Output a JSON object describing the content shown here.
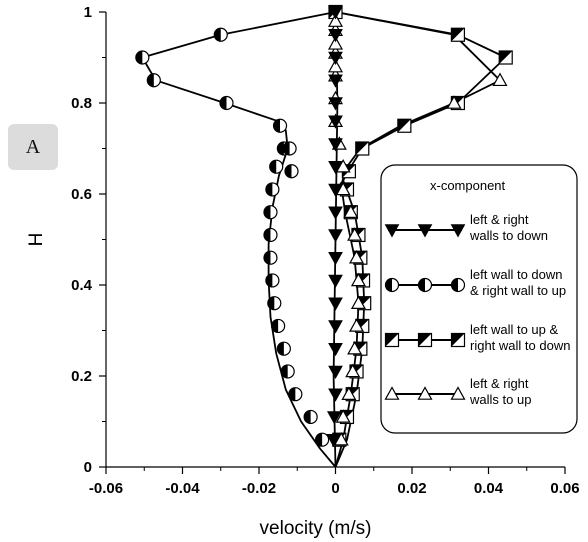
{
  "panel_label": "A",
  "chart_data": {
    "type": "line",
    "xlabel": "velocity (m/s)",
    "ylabel": "H",
    "xlim": [
      -0.06,
      0.06
    ],
    "ylim": [
      0,
      1
    ],
    "x_ticks": [
      "-0.06",
      "-0.04",
      "-0.02",
      "0",
      "0.02",
      "0.04",
      "0.06"
    ],
    "y_ticks": [
      "0",
      "0.2",
      "0.4",
      "0.6",
      "0.8",
      "1"
    ],
    "grid": false,
    "legend": {
      "title": "x-component",
      "placement": "right"
    },
    "series": [
      {
        "name": "left & right walls to down",
        "marker": "triangle-down-filled",
        "line_x": [
          0,
          -0.0005,
          0,
          0.0005,
          0
        ],
        "line_y": [
          0,
          0.2,
          0.5,
          0.8,
          1
        ],
        "x": [
          -0.0005,
          -0.0003,
          0,
          0,
          0,
          0,
          0,
          0,
          0,
          0,
          0,
          0,
          0,
          0,
          0,
          0,
          0,
          0,
          0,
          0
        ],
        "y": [
          0.06,
          0.11,
          0.16,
          0.21,
          0.26,
          0.31,
          0.36,
          0.41,
          0.46,
          0.51,
          0.56,
          0.61,
          0.66,
          0.71,
          0.76,
          0.8,
          0.85,
          0.9,
          0.95,
          1.0
        ]
      },
      {
        "name": "left wall to down & right wall to up",
        "marker": "circle-half",
        "line_x": [
          0,
          -0.004,
          -0.009,
          -0.013,
          -0.0155,
          -0.017,
          -0.0175,
          -0.0175,
          -0.0165,
          -0.0148,
          -0.0125,
          -0.013,
          -0.015,
          -0.029,
          -0.047,
          -0.0505,
          -0.03,
          0
        ],
        "line_y": [
          0,
          0.04,
          0.1,
          0.17,
          0.25,
          0.33,
          0.41,
          0.49,
          0.57,
          0.64,
          0.7,
          0.74,
          0.76,
          0.8,
          0.85,
          0.9,
          0.95,
          1.0
        ],
        "x": [
          -0.0035,
          -0.0065,
          -0.0105,
          -0.0125,
          -0.0135,
          -0.015,
          -0.016,
          -0.0165,
          -0.017,
          -0.017,
          -0.017,
          -0.0165,
          -0.0155,
          -0.0135,
          -0.012,
          -0.0115,
          -0.0145,
          -0.0285,
          -0.0475,
          -0.0505,
          -0.03
        ],
        "y": [
          0.06,
          0.11,
          0.16,
          0.21,
          0.26,
          0.31,
          0.36,
          0.41,
          0.46,
          0.51,
          0.56,
          0.61,
          0.66,
          0.7,
          0.7,
          0.65,
          0.75,
          0.8,
          0.85,
          0.9,
          0.95
        ]
      },
      {
        "name": "left wall to up & right wall to down",
        "marker": "square-half",
        "line_x": [
          0,
          0.003,
          0.0055,
          0.007,
          0.0075,
          0.007,
          0.005,
          0.002,
          0.004,
          0.007,
          0.018,
          0.032,
          0.0445,
          0.032,
          0
        ],
        "line_y": [
          0,
          0.06,
          0.16,
          0.26,
          0.36,
          0.46,
          0.56,
          0.63,
          0.66,
          0.7,
          0.75,
          0.8,
          0.9,
          0.95,
          1.0
        ],
        "x": [
          0.001,
          0.003,
          0.0045,
          0.0055,
          0.0065,
          0.007,
          0.0075,
          0.0072,
          0.0065,
          0.006,
          0.004,
          0.003,
          0.0035,
          0.007,
          0.018,
          0.032,
          0.0445,
          0.032,
          0.0
        ],
        "y": [
          0.06,
          0.11,
          0.16,
          0.21,
          0.26,
          0.31,
          0.36,
          0.41,
          0.46,
          0.51,
          0.56,
          0.61,
          0.65,
          0.7,
          0.75,
          0.8,
          0.9,
          0.95,
          1.0
        ]
      },
      {
        "name": "left & right walls to up",
        "marker": "triangle-up-open",
        "line_x": [
          0,
          0.002,
          0.004,
          0.0055,
          0.006,
          0.005,
          0.0025,
          0.0015,
          0.003,
          0.0065,
          0.017,
          0.031,
          0.043,
          0.031,
          0
        ],
        "line_y": [
          0,
          0.06,
          0.16,
          0.26,
          0.36,
          0.46,
          0.56,
          0.62,
          0.66,
          0.7,
          0.75,
          0.8,
          0.85,
          0.95,
          1.0
        ],
        "x": [
          0.0015,
          0.002,
          0.0035,
          0.0045,
          0.005,
          0.0055,
          0.006,
          0.006,
          0.0055,
          0.005,
          0.004,
          0.002,
          0.002,
          0.001,
          0.0,
          0.0,
          0.0,
          0.0,
          0.0,
          0.0,
          0.0,
          0.0,
          0.031,
          0.043
        ],
        "y": [
          0.06,
          0.11,
          0.16,
          0.21,
          0.26,
          0.31,
          0.36,
          0.41,
          0.46,
          0.51,
          0.56,
          0.61,
          0.66,
          0.71,
          0.76,
          0.81,
          0.86,
          0.91,
          0.96,
          0.98,
          0.93,
          0.88,
          0.8,
          0.85
        ]
      }
    ]
  }
}
